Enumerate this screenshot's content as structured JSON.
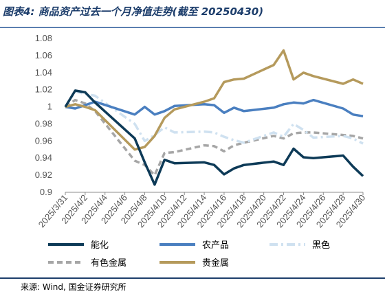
{
  "title": "图表4: 商品资产过去一个月净值走势(截至 20250430)",
  "source": "来源: Wind, 国金证券研究所",
  "chart_data": {
    "type": "line",
    "x": [
      "2025/3/31",
      "2025/4/1",
      "2025/4/2",
      "2025/4/3",
      "2025/4/7",
      "2025/4/8",
      "2025/4/9",
      "2025/4/10",
      "2025/4/11",
      "2025/4/14",
      "2025/4/15",
      "2025/4/16",
      "2025/4/17",
      "2025/4/18",
      "2025/4/21",
      "2025/4/22",
      "2025/4/23",
      "2025/4/24",
      "2025/4/25",
      "2025/4/28",
      "2025/4/29",
      "2025/4/30"
    ],
    "xtick_labels": [
      "2025/3/31",
      "2025/4/2",
      "2025/4/4",
      "2025/4/6",
      "2025/4/8",
      "2025/4/10",
      "2025/4/12",
      "2025/4/14",
      "2025/4/16",
      "2025/4/18",
      "2025/4/20",
      "2025/4/22",
      "2025/4/24",
      "2025/4/26",
      "2025/4/28",
      "2025/4/30"
    ],
    "yticks": [
      0.9,
      0.92,
      0.94,
      0.96,
      0.98,
      1,
      1.02,
      1.04,
      1.06,
      1.08
    ],
    "ylim": [
      0.9,
      1.08
    ],
    "legend_position": "bottom",
    "series": [
      {
        "name": "能化",
        "color": "#0d3a57",
        "style": "solid",
        "points": [
          [
            "2025/3/31",
            1.0
          ],
          [
            "2025/4/1",
            1.019
          ],
          [
            "2025/4/2",
            1.017
          ],
          [
            "2025/4/3",
            1.005
          ],
          [
            "2025/4/7",
            0.963
          ],
          [
            "2025/4/8",
            0.935
          ],
          [
            "2025/4/9",
            0.909
          ],
          [
            "2025/4/10",
            0.938
          ],
          [
            "2025/4/11",
            0.934
          ],
          [
            "2025/4/14",
            0.935
          ],
          [
            "2025/4/15",
            0.932
          ],
          [
            "2025/4/16",
            0.921
          ],
          [
            "2025/4/17",
            0.928
          ],
          [
            "2025/4/18",
            0.932
          ],
          [
            "2025/4/21",
            0.936
          ],
          [
            "2025/4/22",
            0.932
          ],
          [
            "2025/4/23",
            0.951
          ],
          [
            "2025/4/24",
            0.941
          ],
          [
            "2025/4/25",
            0.94
          ],
          [
            "2025/4/28",
            0.943
          ],
          [
            "2025/4/29",
            0.93
          ],
          [
            "2025/4/30",
            0.919
          ]
        ]
      },
      {
        "name": "农产品",
        "color": "#4a7fc0",
        "style": "solid",
        "points": [
          [
            "2025/3/31",
            1.0
          ],
          [
            "2025/4/1",
            0.998
          ],
          [
            "2025/4/2",
            1.002
          ],
          [
            "2025/4/3",
            1.006
          ],
          [
            "2025/4/7",
            0.991
          ],
          [
            "2025/4/8",
            1.0
          ],
          [
            "2025/4/9",
            0.991
          ],
          [
            "2025/4/10",
            0.995
          ],
          [
            "2025/4/11",
            1.001
          ],
          [
            "2025/4/14",
            1.003
          ],
          [
            "2025/4/15",
            1.002
          ],
          [
            "2025/4/16",
            0.993
          ],
          [
            "2025/4/17",
            0.999
          ],
          [
            "2025/4/18",
            0.995
          ],
          [
            "2025/4/21",
            0.999
          ],
          [
            "2025/4/22",
            1.003
          ],
          [
            "2025/4/23",
            1.005
          ],
          [
            "2025/4/24",
            1.004
          ],
          [
            "2025/4/25",
            1.008
          ],
          [
            "2025/4/28",
            0.998
          ],
          [
            "2025/4/29",
            0.991
          ],
          [
            "2025/4/30",
            0.989
          ]
        ]
      },
      {
        "name": "黑色",
        "color": "#cfe1f0",
        "style": "dashdot",
        "points": [
          [
            "2025/3/31",
            1.0
          ],
          [
            "2025/4/1",
            1.018
          ],
          [
            "2025/4/2",
            1.015
          ],
          [
            "2025/4/3",
            1.013
          ],
          [
            "2025/4/7",
            0.98
          ],
          [
            "2025/4/8",
            0.96
          ],
          [
            "2025/4/9",
            0.967
          ],
          [
            "2025/4/10",
            0.976
          ],
          [
            "2025/4/11",
            0.97
          ],
          [
            "2025/4/14",
            0.971
          ],
          [
            "2025/4/15",
            0.97
          ],
          [
            "2025/4/16",
            0.965
          ],
          [
            "2025/4/17",
            0.961
          ],
          [
            "2025/4/18",
            0.958
          ],
          [
            "2025/4/21",
            0.97
          ],
          [
            "2025/4/22",
            0.965
          ],
          [
            "2025/4/23",
            0.98
          ],
          [
            "2025/4/24",
            0.973
          ],
          [
            "2025/4/25",
            0.964
          ],
          [
            "2025/4/28",
            0.966
          ],
          [
            "2025/4/29",
            0.963
          ],
          [
            "2025/4/30",
            0.957
          ]
        ]
      },
      {
        "name": "有色金属",
        "color": "#a6a6a6",
        "style": "dashed",
        "points": [
          [
            "2025/3/31",
            1.0
          ],
          [
            "2025/4/1",
            1.008
          ],
          [
            "2025/4/2",
            1.004
          ],
          [
            "2025/4/3",
            0.995
          ],
          [
            "2025/4/7",
            0.937
          ],
          [
            "2025/4/8",
            0.932
          ],
          [
            "2025/4/9",
            0.92
          ],
          [
            "2025/4/10",
            0.946
          ],
          [
            "2025/4/11",
            0.947
          ],
          [
            "2025/4/14",
            0.955
          ],
          [
            "2025/4/15",
            0.954
          ],
          [
            "2025/4/16",
            0.948
          ],
          [
            "2025/4/17",
            0.955
          ],
          [
            "2025/4/18",
            0.958
          ],
          [
            "2025/4/21",
            0.966
          ],
          [
            "2025/4/22",
            0.963
          ],
          [
            "2025/4/23",
            0.969
          ],
          [
            "2025/4/24",
            0.97
          ],
          [
            "2025/4/25",
            0.97
          ],
          [
            "2025/4/28",
            0.967
          ],
          [
            "2025/4/29",
            0.966
          ],
          [
            "2025/4/30",
            0.963
          ]
        ]
      },
      {
        "name": "贵金属",
        "color": "#b59a5c",
        "style": "solid",
        "points": [
          [
            "2025/3/31",
            1.0
          ],
          [
            "2025/4/1",
            1.003
          ],
          [
            "2025/4/2",
            1.0
          ],
          [
            "2025/4/3",
            0.996
          ],
          [
            "2025/4/7",
            0.95
          ],
          [
            "2025/4/8",
            0.953
          ],
          [
            "2025/4/9",
            0.966
          ],
          [
            "2025/4/10",
            0.987
          ],
          [
            "2025/4/11",
            0.997
          ],
          [
            "2025/4/14",
            1.006
          ],
          [
            "2025/4/15",
            1.01
          ],
          [
            "2025/4/16",
            1.029
          ],
          [
            "2025/4/17",
            1.032
          ],
          [
            "2025/4/18",
            1.033
          ],
          [
            "2025/4/21",
            1.049
          ],
          [
            "2025/4/22",
            1.066
          ],
          [
            "2025/4/23",
            1.032
          ],
          [
            "2025/4/24",
            1.04
          ],
          [
            "2025/4/25",
            1.036
          ],
          [
            "2025/4/28",
            1.027
          ],
          [
            "2025/4/29",
            1.032
          ],
          [
            "2025/4/30",
            1.027
          ]
        ]
      }
    ]
  }
}
